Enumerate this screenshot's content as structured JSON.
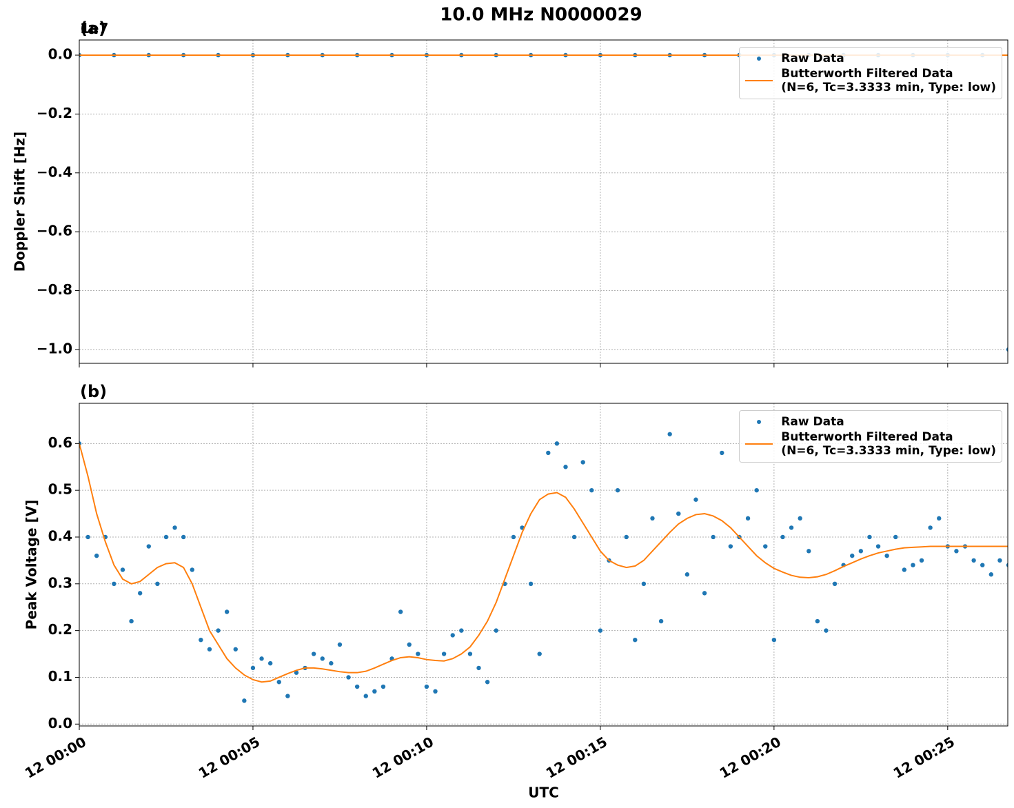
{
  "title": "10.0 MHz N0000029",
  "chart_data": [
    {
      "type": "scatter",
      "label": "(a)",
      "y_offset_label": "1e7",
      "ylabel": "Doppler Shift [Hz]",
      "x": [
        0,
        1,
        2,
        3,
        4,
        5,
        6,
        7,
        8,
        9,
        10,
        11,
        12,
        13,
        14,
        15,
        16,
        17,
        18,
        19,
        20,
        21,
        22,
        23,
        24,
        25,
        26,
        26.75
      ],
      "series": [
        {
          "name": "Raw Data",
          "color": "#1f77b4",
          "style": "points",
          "values": [
            0,
            0,
            0,
            0,
            0,
            0,
            0,
            0,
            0,
            0,
            0,
            0,
            0,
            0,
            0,
            0,
            0,
            0,
            0,
            0,
            0,
            0,
            0,
            0,
            0,
            0,
            0,
            -10000000
          ]
        },
        {
          "name": "Butterworth Filtered Data\n(N=6, Tc=3.3333 min, Type: low)",
          "color": "#ff7f0e",
          "style": "line",
          "values": [
            0,
            0,
            0,
            0,
            0,
            0,
            0,
            0,
            0,
            0,
            0,
            0,
            0,
            0,
            0,
            0,
            0,
            0,
            0,
            0,
            0,
            0,
            0,
            0,
            0,
            0,
            0,
            0
          ]
        }
      ],
      "xlim": [
        0,
        26.73
      ],
      "ylim": [
        -10470000,
        515000
      ],
      "xticks": [
        0,
        5,
        10,
        15,
        20,
        25
      ],
      "yticks": [
        {
          "value": 0,
          "label": "0.0"
        },
        {
          "value": -2000000,
          "label": "−0.2"
        },
        {
          "value": -4000000,
          "label": "−0.4"
        },
        {
          "value": -6000000,
          "label": "−0.6"
        },
        {
          "value": -8000000,
          "label": "−0.8"
        },
        {
          "value": -10000000,
          "label": "−1.0"
        }
      ],
      "grid": true,
      "legend": "upper right"
    },
    {
      "type": "scatter",
      "label": "(b)",
      "ylabel": "Peak Voltage [V]",
      "xlabel": "UTC",
      "x": [
        0,
        0.25,
        0.5,
        0.75,
        1,
        1.25,
        1.5,
        1.75,
        2,
        2.25,
        2.5,
        2.75,
        3,
        3.25,
        3.5,
        3.75,
        4,
        4.25,
        4.5,
        4.75,
        5,
        5.25,
        5.5,
        5.75,
        6,
        6.25,
        6.5,
        6.75,
        7,
        7.25,
        7.5,
        7.75,
        8,
        8.25,
        8.5,
        8.75,
        9,
        9.25,
        9.5,
        9.75,
        10,
        10.25,
        10.5,
        10.75,
        11,
        11.25,
        11.5,
        11.75,
        12,
        12.25,
        12.5,
        12.75,
        13,
        13.25,
        13.5,
        13.75,
        14,
        14.25,
        14.5,
        14.75,
        15,
        15.25,
        15.5,
        15.75,
        16,
        16.25,
        16.5,
        16.75,
        17,
        17.25,
        17.5,
        17.75,
        18,
        18.25,
        18.5,
        18.75,
        19,
        19.25,
        19.5,
        19.75,
        20,
        20.25,
        20.5,
        20.75,
        21,
        21.25,
        21.5,
        21.75,
        22,
        22.25,
        22.5,
        22.75,
        23,
        23.25,
        23.5,
        23.75,
        24,
        24.25,
        24.5,
        24.75,
        25,
        25.25,
        25.5,
        25.75,
        26,
        26.25,
        26.5,
        26.75
      ],
      "series": [
        {
          "name": "Raw Data",
          "color": "#1f77b4",
          "style": "points",
          "values": [
            0.6,
            0.4,
            0.36,
            0.4,
            0.3,
            0.33,
            0.22,
            0.28,
            0.38,
            0.3,
            0.4,
            0.42,
            0.4,
            0.33,
            0.18,
            0.16,
            0.2,
            0.24,
            0.16,
            0.05,
            0.12,
            0.14,
            0.13,
            0.09,
            0.06,
            0.11,
            0.12,
            0.15,
            0.14,
            0.13,
            0.17,
            0.1,
            0.08,
            0.06,
            0.07,
            0.08,
            0.14,
            0.24,
            0.17,
            0.15,
            0.08,
            0.07,
            0.15,
            0.19,
            0.2,
            0.15,
            0.12,
            0.09,
            0.2,
            0.3,
            0.4,
            0.42,
            0.3,
            0.15,
            0.58,
            0.6,
            0.55,
            0.4,
            0.56,
            0.5,
            0.2,
            0.35,
            0.5,
            0.4,
            0.18,
            0.3,
            0.44,
            0.22,
            0.62,
            0.45,
            0.32,
            0.48,
            0.28,
            0.4,
            0.58,
            0.38,
            0.4,
            0.44,
            0.5,
            0.38,
            0.18,
            0.4,
            0.42,
            0.44,
            0.37,
            0.22,
            0.2,
            0.3,
            0.34,
            0.36,
            0.37,
            0.4,
            0.38,
            0.36,
            0.4,
            0.33,
            0.34,
            0.35,
            0.42,
            0.44,
            0.38,
            0.37,
            0.38,
            0.35,
            0.34,
            0.32,
            0.35,
            0.34
          ]
        },
        {
          "name": "Butterworth Filtered Data\n(N=6, Tc=3.3333 min, Type: low)",
          "color": "#ff7f0e",
          "style": "line",
          "values": [
            0.6,
            0.53,
            0.45,
            0.39,
            0.34,
            0.31,
            0.3,
            0.305,
            0.32,
            0.335,
            0.343,
            0.345,
            0.335,
            0.3,
            0.25,
            0.2,
            0.17,
            0.14,
            0.12,
            0.105,
            0.095,
            0.09,
            0.092,
            0.1,
            0.108,
            0.115,
            0.12,
            0.12,
            0.118,
            0.115,
            0.112,
            0.11,
            0.11,
            0.113,
            0.12,
            0.128,
            0.136,
            0.142,
            0.144,
            0.142,
            0.138,
            0.136,
            0.135,
            0.14,
            0.15,
            0.165,
            0.19,
            0.22,
            0.26,
            0.31,
            0.36,
            0.41,
            0.45,
            0.48,
            0.492,
            0.495,
            0.485,
            0.46,
            0.43,
            0.4,
            0.37,
            0.35,
            0.34,
            0.335,
            0.338,
            0.35,
            0.37,
            0.39,
            0.41,
            0.428,
            0.44,
            0.448,
            0.45,
            0.445,
            0.435,
            0.42,
            0.4,
            0.38,
            0.36,
            0.345,
            0.333,
            0.325,
            0.318,
            0.314,
            0.313,
            0.315,
            0.32,
            0.328,
            0.337,
            0.345,
            0.353,
            0.36,
            0.366,
            0.37,
            0.374,
            0.377,
            0.378,
            0.379,
            0.38,
            0.38,
            0.38,
            0.38,
            0.38,
            0.38,
            0.38,
            0.38,
            0.38,
            0.38
          ]
        }
      ],
      "xlim": [
        0,
        26.73
      ],
      "ylim": [
        -0.004,
        0.686
      ],
      "xticks": [
        {
          "value": 0,
          "label": "12 00:00"
        },
        {
          "value": 5,
          "label": "12 00:05"
        },
        {
          "value": 10,
          "label": "12 00:10"
        },
        {
          "value": 15,
          "label": "12 00:15"
        },
        {
          "value": 20,
          "label": "12 00:20"
        },
        {
          "value": 25,
          "label": "12 00:25"
        }
      ],
      "yticks": [
        {
          "value": 0,
          "label": "0.0"
        },
        0.1,
        0.2,
        0.3,
        0.4,
        0.5,
        0.6
      ],
      "grid": true,
      "legend": "upper right"
    }
  ]
}
